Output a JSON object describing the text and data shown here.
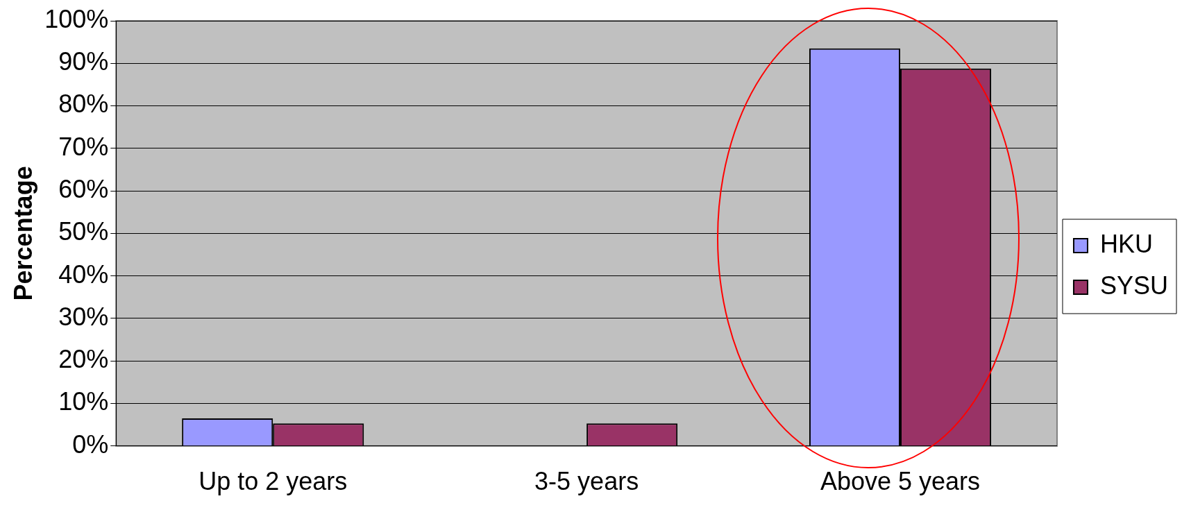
{
  "chart_data": {
    "type": "bar",
    "ylabel": "Percentage",
    "categories": [
      "Up to 2 years",
      "3-5 years",
      "Above 5 years"
    ],
    "series": [
      {
        "name": "HKU",
        "color": "#9999ff",
        "values": [
          6.5,
          0,
          93.5
        ]
      },
      {
        "name": "SYSU",
        "color": "#993366",
        "values": [
          5.3,
          5.3,
          88.8
        ]
      }
    ],
    "ylim": [
      0,
      100
    ],
    "yticks": [
      {
        "value": 0,
        "label": "0%"
      },
      {
        "value": 10,
        "label": "10%"
      },
      {
        "value": 20,
        "label": "20%"
      },
      {
        "value": 30,
        "label": "30%"
      },
      {
        "value": 40,
        "label": "40%"
      },
      {
        "value": 50,
        "label": "50%"
      },
      {
        "value": 60,
        "label": "60%"
      },
      {
        "value": 70,
        "label": "70%"
      },
      {
        "value": 80,
        "label": "80%"
      },
      {
        "value": 90,
        "label": "90%"
      },
      {
        "value": 100,
        "label": "100%"
      }
    ],
    "grid": "y",
    "legend": "right"
  }
}
